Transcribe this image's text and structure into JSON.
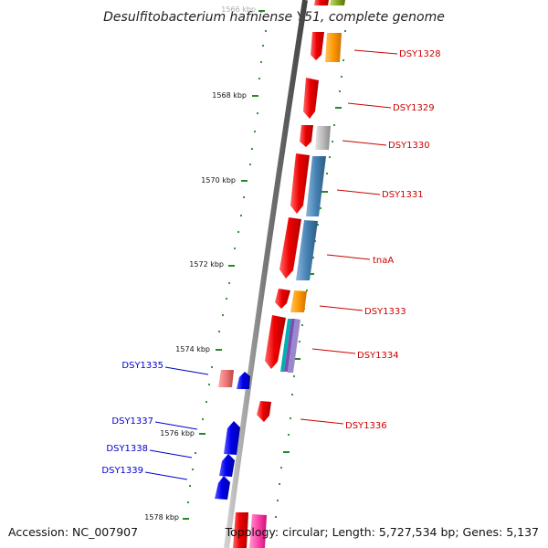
{
  "title": "Desulfitobacterium hafniense Y51, complete genome",
  "footer": {
    "accession": "Accession: NC_007907",
    "topology": "Topology: circular; Length: 5,727,534 bp; Genes: 5,137"
  },
  "colors": {
    "strand_red": "#ee0000",
    "strand_blue": "#0000ee",
    "orange": "#ff9900",
    "steel_blue": "#4682b4",
    "grey": "#bbbbbb",
    "olive": "#88aa22",
    "pink": "#ff44aa",
    "salmon": "#ee7777",
    "tick_green": "#228b22",
    "label_red": "#cc0000",
    "label_blue": "#0000cc"
  },
  "ticks": [
    {
      "label": "1566 kbp"
    },
    {
      "label": "1568 kbp"
    },
    {
      "label": "1570 kbp"
    },
    {
      "label": "1572 kbp"
    },
    {
      "label": "1574 kbp"
    },
    {
      "label": "1576 kbp"
    },
    {
      "label": "1578 kbp"
    }
  ],
  "genes_right": [
    {
      "label": "DSY1328"
    },
    {
      "label": "DSY1329"
    },
    {
      "label": "DSY1330"
    },
    {
      "label": "DSY1331"
    },
    {
      "label": "tnaA"
    },
    {
      "label": "DSY1333"
    },
    {
      "label": "DSY1334"
    },
    {
      "label": "DSY1336"
    }
  ],
  "genes_left": [
    {
      "label": "DSY1335"
    },
    {
      "label": "DSY1337"
    },
    {
      "label": "DSY1338"
    },
    {
      "label": "DSY1339"
    }
  ]
}
